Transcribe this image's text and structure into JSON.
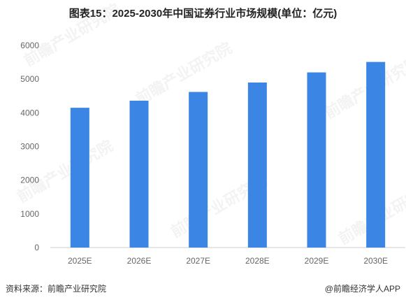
{
  "title": "图表15：2025-2030年中国证券行业市场规模(单位：亿元)",
  "footer": {
    "source": "资料来源：前瞻产业研究院",
    "credit": "@前瞻经济学人APP"
  },
  "watermark": "前瞻产业研究院",
  "colors": {
    "bar": "#3b86e4",
    "axis": "#cccccc",
    "text": "#666666"
  },
  "chart_data": {
    "type": "bar",
    "title": "图表15：2025-2030年中国证券行业市场规模(单位：亿元)",
    "xlabel": "",
    "ylabel": "",
    "categories": [
      "2025E",
      "2026E",
      "2027E",
      "2028E",
      "2029E",
      "2030E"
    ],
    "values": [
      4150,
      4360,
      4620,
      4900,
      5200,
      5510
    ],
    "ylim": [
      0,
      6000
    ],
    "yticks": [
      0,
      1000,
      2000,
      3000,
      4000,
      5000,
      6000
    ],
    "grid": false,
    "legend": "none"
  }
}
